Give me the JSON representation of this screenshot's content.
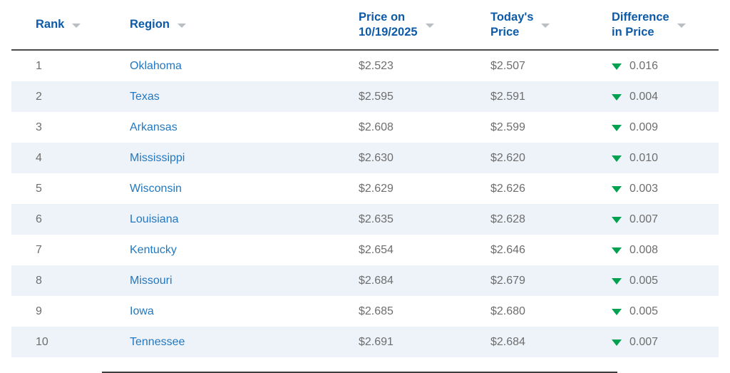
{
  "colors": {
    "header_text": "#0d5ba8",
    "link_text": "#2478bf",
    "body_text": "#6e6e6e",
    "stripe_background": "#eef3f9",
    "sort_caret_gray": "#b8bec4",
    "header_divider": "#4a4a4a",
    "decrease_green": "#00a14f",
    "bottom_bar": "#3d3d3d"
  },
  "table": {
    "columns": [
      {
        "label": "Rank",
        "sort_icon": "caret-down"
      },
      {
        "label": "Region",
        "sort_icon": "caret-down"
      },
      {
        "label": "Price on\n10/19/2025",
        "sort_icon": "caret-down"
      },
      {
        "label": "Today's\nPrice",
        "sort_icon": "caret-down"
      },
      {
        "label": "Difference\nin Price",
        "sort_icon": "caret-down"
      }
    ],
    "rows": [
      {
        "rank": "1",
        "region": "Oklahoma",
        "price_on_10_19_2025": "$2.523",
        "todays_price": "$2.507",
        "difference": "0.016",
        "direction": "down"
      },
      {
        "rank": "2",
        "region": "Texas",
        "price_on_10_19_2025": "$2.595",
        "todays_price": "$2.591",
        "difference": "0.004",
        "direction": "down"
      },
      {
        "rank": "3",
        "region": "Arkansas",
        "price_on_10_19_2025": "$2.608",
        "todays_price": "$2.599",
        "difference": "0.009",
        "direction": "down"
      },
      {
        "rank": "4",
        "region": "Mississippi",
        "price_on_10_19_2025": "$2.630",
        "todays_price": "$2.620",
        "difference": "0.010",
        "direction": "down"
      },
      {
        "rank": "5",
        "region": "Wisconsin",
        "price_on_10_19_2025": "$2.629",
        "todays_price": "$2.626",
        "difference": "0.003",
        "direction": "down"
      },
      {
        "rank": "6",
        "region": "Louisiana",
        "price_on_10_19_2025": "$2.635",
        "todays_price": "$2.628",
        "difference": "0.007",
        "direction": "down"
      },
      {
        "rank": "7",
        "region": "Kentucky",
        "price_on_10_19_2025": "$2.654",
        "todays_price": "$2.646",
        "difference": "0.008",
        "direction": "down"
      },
      {
        "rank": "8",
        "region": "Missouri",
        "price_on_10_19_2025": "$2.684",
        "todays_price": "$2.679",
        "difference": "0.005",
        "direction": "down"
      },
      {
        "rank": "9",
        "region": "Iowa",
        "price_on_10_19_2025": "$2.685",
        "todays_price": "$2.680",
        "difference": "0.005",
        "direction": "down"
      },
      {
        "rank": "10",
        "region": "Tennessee",
        "price_on_10_19_2025": "$2.691",
        "todays_price": "$2.684",
        "difference": "0.007",
        "direction": "down"
      }
    ]
  }
}
